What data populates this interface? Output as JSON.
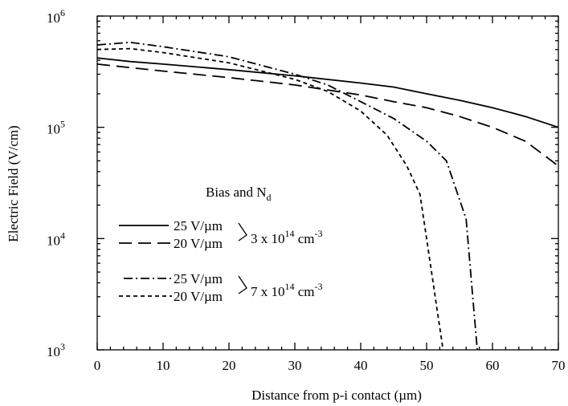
{
  "chart_data": {
    "type": "line",
    "xlabel": "Distance from p-i contact (µm)",
    "ylabel": "Electric Field (V/cm)",
    "xlim": [
      0,
      70
    ],
    "ylim": [
      1000,
      1000000
    ],
    "yscale": "log",
    "grid": false,
    "x_ticks": [
      0,
      10,
      20,
      30,
      40,
      50,
      60,
      70
    ],
    "y_ticks": [
      {
        "base": "10",
        "exp": "3",
        "value": 1000
      },
      {
        "base": "10",
        "exp": "4",
        "value": 10000
      },
      {
        "base": "10",
        "exp": "5",
        "value": 100000
      },
      {
        "base": "10",
        "exp": "6",
        "value": 1000000
      }
    ],
    "legend": {
      "title": {
        "main": "Bias and N",
        "sub": "d"
      },
      "groups": [
        {
          "base": "3 x 10",
          "exp": "14",
          "unit": " cm",
          "unit_exp": "-3",
          "members": [
            0,
            1
          ]
        },
        {
          "base": "7 x 10",
          "exp": "14",
          "unit": " cm",
          "unit_exp": "-3",
          "members": [
            2,
            3
          ]
        }
      ]
    },
    "series": [
      {
        "name": "25 V/µm",
        "style": "solid",
        "x": [
          0,
          5,
          10,
          20,
          30,
          40,
          45,
          50,
          55,
          60,
          65,
          70
        ],
        "y": [
          420000,
          390000,
          370000,
          330000,
          290000,
          250000,
          230000,
          200000,
          175000,
          150000,
          125000,
          100000
        ]
      },
      {
        "name": "20 V/µm",
        "style": "long-dash",
        "x": [
          0,
          10,
          20,
          30,
          40,
          45,
          50,
          55,
          60,
          65,
          70
        ],
        "y": [
          370000,
          320000,
          280000,
          240000,
          195000,
          170000,
          150000,
          125000,
          100000,
          75000,
          45000
        ]
      },
      {
        "name": "25 V/µm",
        "style": "dash-dot",
        "x": [
          0,
          5,
          10,
          20,
          30,
          35,
          40,
          45,
          50,
          53,
          56,
          57,
          57.7
        ],
        "y": [
          550000,
          580000,
          530000,
          430000,
          300000,
          240000,
          170000,
          120000,
          75000,
          50000,
          15000,
          3000,
          1000
        ]
      },
      {
        "name": "20 V/µm",
        "style": "short-dash",
        "x": [
          0,
          5,
          10,
          20,
          30,
          35,
          40,
          44,
          47,
          49,
          50,
          51.5,
          52.5
        ],
        "y": [
          500000,
          510000,
          470000,
          380000,
          270000,
          210000,
          140000,
          85000,
          45000,
          25000,
          10000,
          2500,
          1000
        ]
      }
    ]
  }
}
